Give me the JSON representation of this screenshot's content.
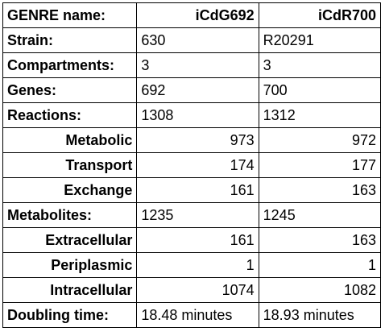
{
  "header": {
    "label": "GENRE name:",
    "col1": "iCdG692",
    "col2": "iCdR700"
  },
  "rows": [
    {
      "label": "Strain:",
      "col1": "630",
      "col2": "R20291"
    },
    {
      "label": "Compartments:",
      "col1": "3",
      "col2": "3"
    },
    {
      "label": "Genes:",
      "col1": "692",
      "col2": "700"
    },
    {
      "label": "Reactions:",
      "col1": "1308",
      "col2": "1312"
    },
    {
      "label": "Metabolic",
      "col1": "973",
      "col2": "972"
    },
    {
      "label": "Transport",
      "col1": "174",
      "col2": "177"
    },
    {
      "label": "Exchange",
      "col1": "161",
      "col2": "163"
    },
    {
      "label": "Metabolites:",
      "col1": "1235",
      "col2": "1245"
    },
    {
      "label": "Extracellular",
      "col1": "161",
      "col2": "163"
    },
    {
      "label": "Periplasmic",
      "col1": "1",
      "col2": "1"
    },
    {
      "label": "Intracellular",
      "col1": "1074",
      "col2": "1082"
    },
    {
      "label": "Doubling time:",
      "col1": "18.48 minutes",
      "col2": "18.93 minutes"
    }
  ]
}
